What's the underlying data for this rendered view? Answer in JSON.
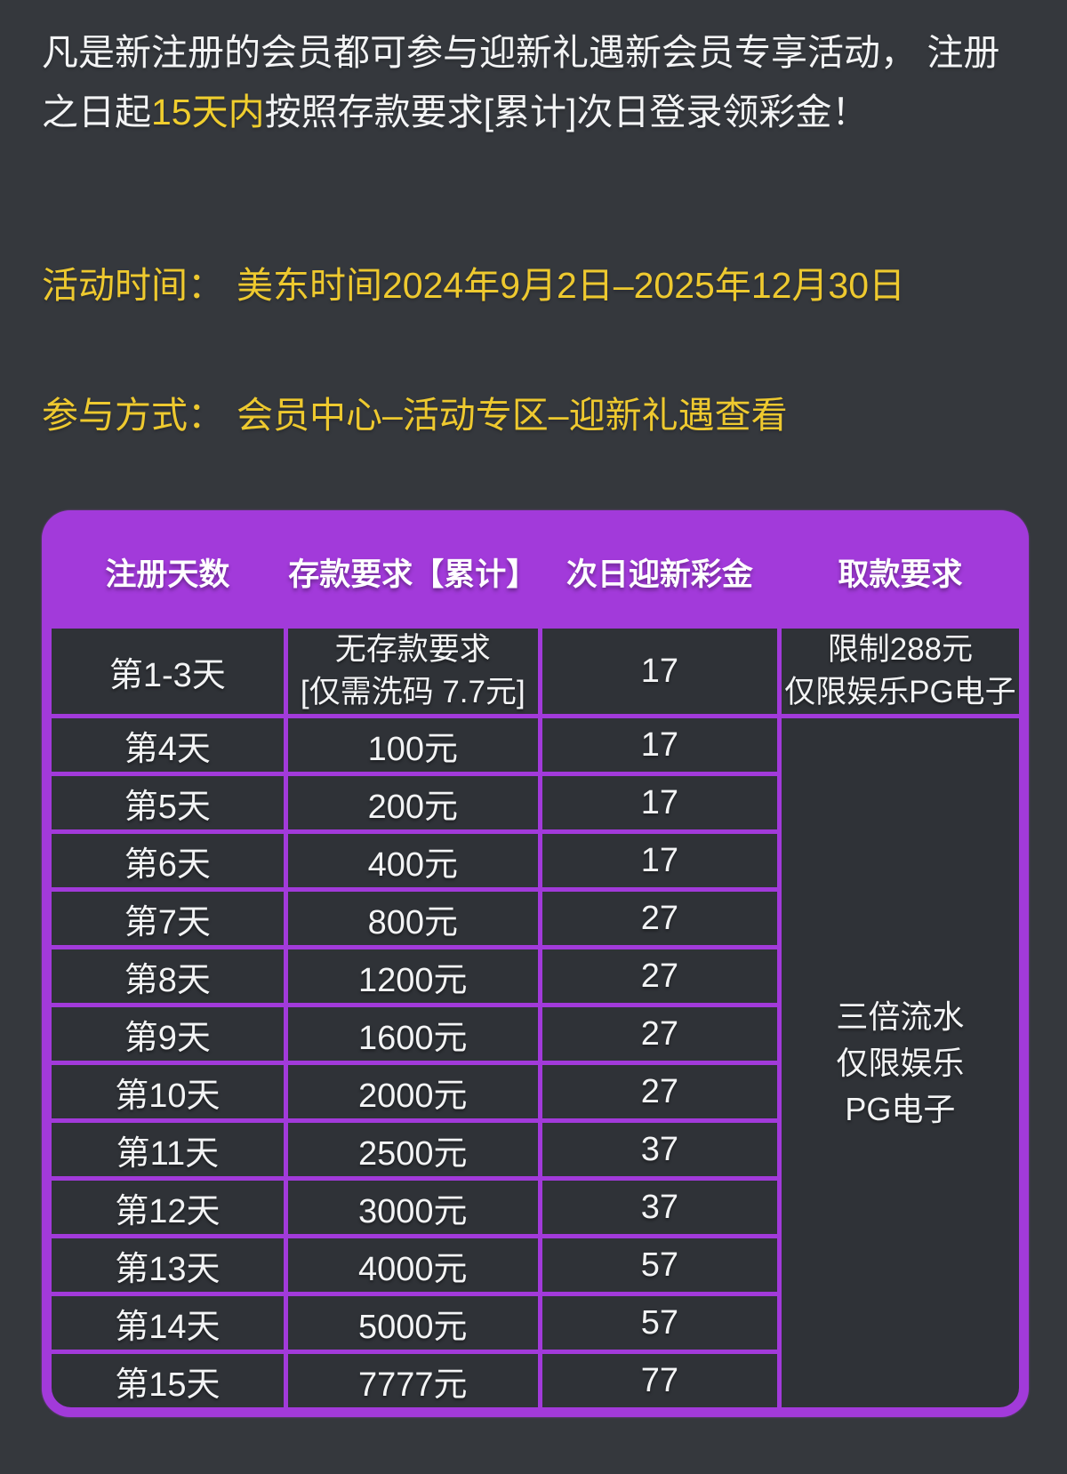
{
  "colors": {
    "page_background": "#35383d",
    "cell_background": "#2f3237",
    "accent_purple": "#a23ada",
    "accent_yellow": "#eec92f",
    "text_white": "#f3f4f5"
  },
  "intro": {
    "line1": "凡是新注册的会员都可参与迎新礼遇新会员专享活动， 注册",
    "line2_pre": "之日起",
    "line2_highlight": "15天内",
    "line2_post": "按照存款要求[累计]次日登录领彩金！"
  },
  "event_time": {
    "label": "活动时间：",
    "value": "美东时间2024年9月2日–2025年12月30日"
  },
  "participation": {
    "label": "参与方式：",
    "value": "会员中心–活动专区–迎新礼遇查看"
  },
  "table": {
    "headers": [
      "注册天数",
      "存款要求【累计】",
      "次日迎新彩金",
      "取款要求"
    ],
    "first_row": {
      "day": "第1-3天",
      "deposit_line1": "无存款要求",
      "deposit_line2": "[仅需洗码 7.7元]",
      "bonus": "17",
      "withdraw_line1": "限制288元",
      "withdraw_line2": "仅限娱乐PG电子"
    },
    "rows": [
      {
        "day": "第4天",
        "deposit": "100元",
        "bonus": "17"
      },
      {
        "day": "第5天",
        "deposit": "200元",
        "bonus": "17"
      },
      {
        "day": "第6天",
        "deposit": "400元",
        "bonus": "17"
      },
      {
        "day": "第7天",
        "deposit": "800元",
        "bonus": "27"
      },
      {
        "day": "第8天",
        "deposit": "1200元",
        "bonus": "27"
      },
      {
        "day": "第9天",
        "deposit": "1600元",
        "bonus": "27"
      },
      {
        "day": "第10天",
        "deposit": "2000元",
        "bonus": "27"
      },
      {
        "day": "第11天",
        "deposit": "2500元",
        "bonus": "37"
      },
      {
        "day": "第12天",
        "deposit": "3000元",
        "bonus": "37"
      },
      {
        "day": "第13天",
        "deposit": "4000元",
        "bonus": "57"
      },
      {
        "day": "第14天",
        "deposit": "5000元",
        "bonus": "57"
      },
      {
        "day": "第15天",
        "deposit": "7777元",
        "bonus": "77"
      }
    ],
    "merged_withdraw": {
      "line1": "三倍流水",
      "line2": "仅限娱乐",
      "line3": "PG电子"
    }
  }
}
